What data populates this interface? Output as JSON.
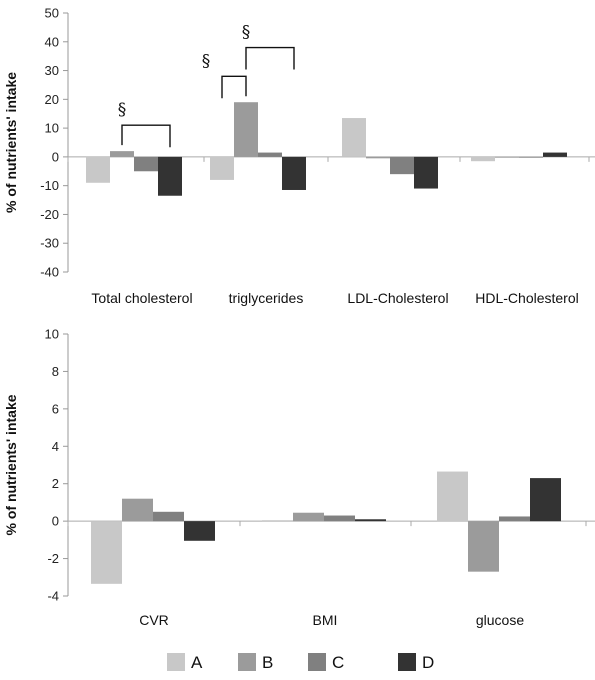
{
  "legend": {
    "items": [
      {
        "label": "A",
        "color": "#c8c8c8"
      },
      {
        "label": "B",
        "color": "#9b9b9b"
      },
      {
        "label": "C",
        "color": "#808080"
      },
      {
        "label": "D",
        "color": "#333333"
      }
    ]
  },
  "chart_data": [
    {
      "type": "bar",
      "title": "",
      "xlabel": "",
      "ylabel": "% of nutrients' intake",
      "ylim": [
        -40,
        50
      ],
      "yticks": [
        50,
        40,
        30,
        20,
        10,
        0,
        -10,
        -20,
        -30,
        -40
      ],
      "categories": [
        "Total cholesterol",
        "triglycerides",
        "LDL-Cholesterol",
        "HDL-Cholesterol"
      ],
      "series": [
        {
          "name": "A",
          "values": [
            -9,
            -8,
            13.5,
            -1.5
          ]
        },
        {
          "name": "B",
          "values": [
            2,
            19,
            -0.5,
            0
          ]
        },
        {
          "name": "C",
          "values": [
            -5,
            1.5,
            -6,
            0
          ]
        },
        {
          "name": "D",
          "values": [
            -13.5,
            -11.5,
            -11,
            1.5
          ]
        }
      ],
      "grid": false,
      "annotations": [
        {
          "text": "§",
          "category": 0,
          "from_series": "B",
          "to_series": "D",
          "y": 11
        },
        {
          "text": "§",
          "category": 1,
          "from_series": "A",
          "to_series": "B",
          "y": 28
        },
        {
          "text": "§",
          "category": 1,
          "from_series": "B",
          "to_series": "D",
          "y": 38
        }
      ]
    },
    {
      "type": "bar",
      "title": "",
      "xlabel": "",
      "ylabel": "% of nutrients' intake",
      "ylim": [
        -4,
        10
      ],
      "yticks": [
        10,
        8,
        6,
        4,
        2,
        0,
        -2,
        -4
      ],
      "categories": [
        "CVR",
        "BMI",
        "glucose"
      ],
      "series": [
        {
          "name": "A",
          "values": [
            -3.35,
            0.05,
            2.65
          ]
        },
        {
          "name": "B",
          "values": [
            1.2,
            0.45,
            -2.7
          ]
        },
        {
          "name": "C",
          "values": [
            0.5,
            0.3,
            0.25
          ]
        },
        {
          "name": "D",
          "values": [
            -1.05,
            0.1,
            2.3
          ]
        }
      ],
      "grid": false
    }
  ]
}
